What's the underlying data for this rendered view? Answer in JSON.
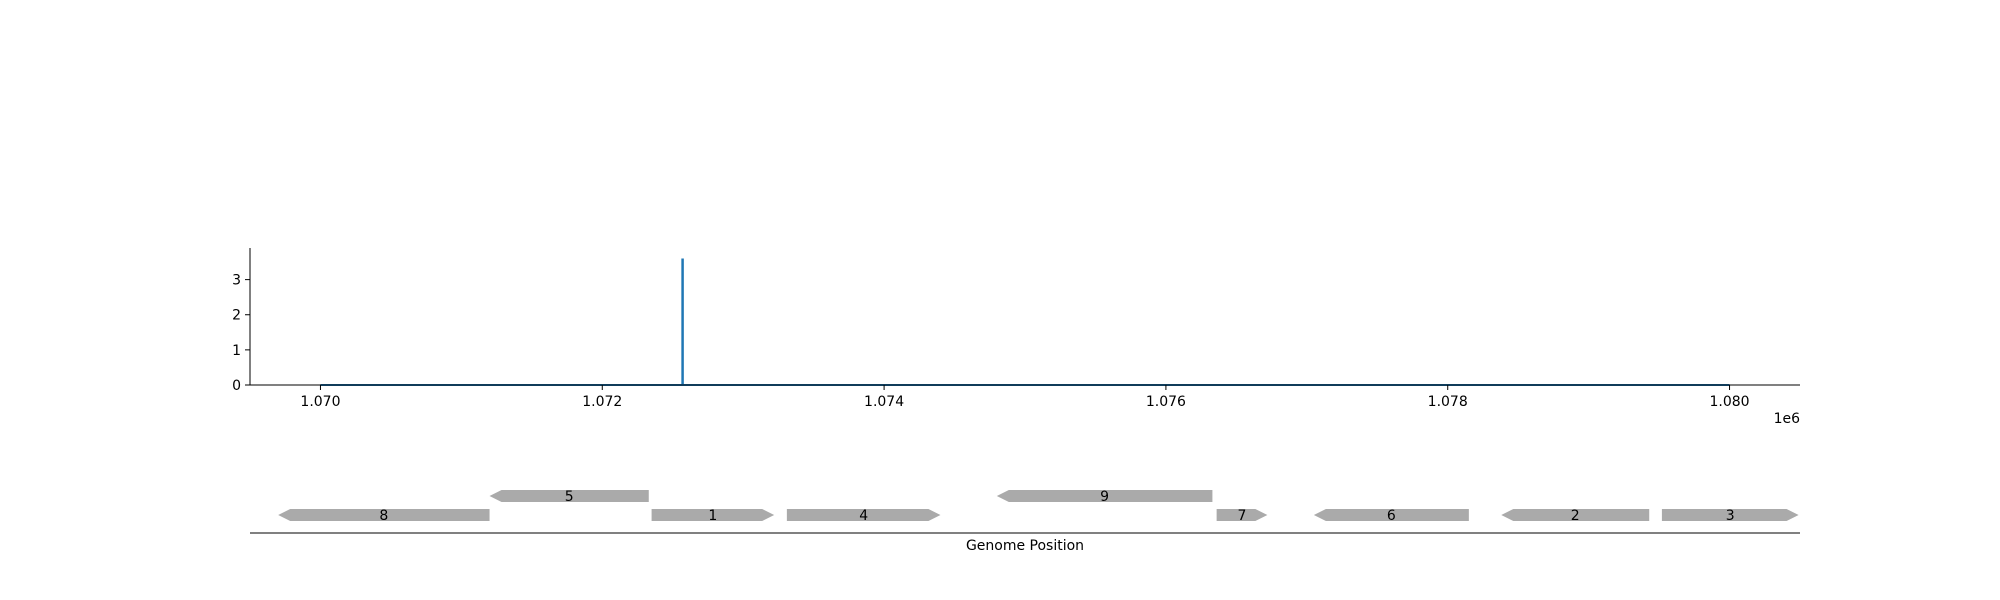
{
  "chart_data": [
    {
      "type": "line",
      "x_range": [
        1070000,
        1080000
      ],
      "xlim": [
        1069500,
        1080500
      ],
      "ylim": [
        0,
        3.9
      ],
      "x_ticks": [
        1070000,
        1072000,
        1074000,
        1076000,
        1078000,
        1080000
      ],
      "x_tick_labels": [
        "1.070",
        "1.072",
        "1.074",
        "1.076",
        "1.078",
        "1.080"
      ],
      "x_offset_label": "1e6",
      "y_ticks": [
        0,
        1,
        2,
        3
      ],
      "y_tick_labels": [
        "0",
        "1",
        "2",
        "3"
      ],
      "series": [
        {
          "color": "#1f77b4",
          "baseline": 0,
          "spikes": [
            {
              "x": 1072570,
              "y": 3.6
            }
          ]
        }
      ],
      "grid": false
    },
    {
      "type": "gene-track",
      "xlim": [
        1069500,
        1080500
      ],
      "xlabel": "Genome Position",
      "gene_color": "#aaaaaa",
      "genes": [
        {
          "label": "8",
          "start": 1069700,
          "end": 1071200,
          "strand": "-",
          "row": 0
        },
        {
          "label": "5",
          "start": 1071200,
          "end": 1072330,
          "strand": "-",
          "row": 1
        },
        {
          "label": "1",
          "start": 1072350,
          "end": 1073220,
          "strand": "+",
          "row": 0
        },
        {
          "label": "4",
          "start": 1073310,
          "end": 1074400,
          "strand": "+",
          "row": 0
        },
        {
          "label": "9",
          "start": 1074800,
          "end": 1076330,
          "strand": "-",
          "row": 1
        },
        {
          "label": "7",
          "start": 1076360,
          "end": 1076720,
          "strand": "+",
          "row": 0
        },
        {
          "label": "6",
          "start": 1077050,
          "end": 1078150,
          "strand": "-",
          "row": 0
        },
        {
          "label": "2",
          "start": 1078380,
          "end": 1079430,
          "strand": "-",
          "row": 0
        },
        {
          "label": "3",
          "start": 1079520,
          "end": 1080490,
          "strand": "+",
          "row": 0
        }
      ]
    }
  ]
}
